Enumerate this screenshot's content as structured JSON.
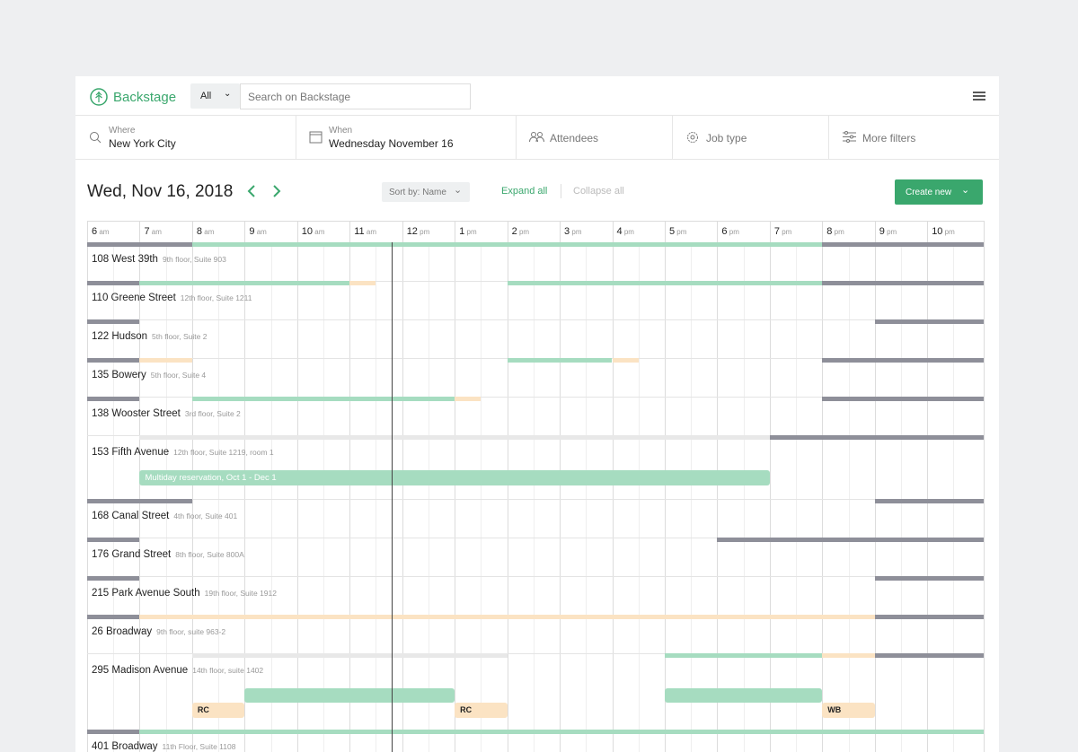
{
  "header": {
    "brand": "Backstage",
    "scope": "All",
    "search_placeholder": "Search on Backstage"
  },
  "filters": [
    {
      "label": "Where",
      "value": "New York City"
    },
    {
      "label": "When",
      "value": "Wednesday November 16"
    },
    {
      "label": "Attendees"
    },
    {
      "label": "Job type"
    },
    {
      "label": "More filters"
    }
  ],
  "toolbar": {
    "date": "Wed, Nov 16, 2018",
    "sort": "Sort by: Name",
    "expand": "Expand all",
    "collapse": "Collapse all",
    "create": "Create new"
  },
  "hours": [
    {
      "hour": "6",
      "period": "am"
    },
    {
      "hour": "7",
      "period": "am"
    },
    {
      "hour": "8",
      "period": "am"
    },
    {
      "hour": "9",
      "period": "am"
    },
    {
      "hour": "10",
      "period": "am"
    },
    {
      "hour": "11",
      "period": "am"
    },
    {
      "hour": "12",
      "period": "pm"
    },
    {
      "hour": "1",
      "period": "pm"
    },
    {
      "hour": "2",
      "period": "pm"
    },
    {
      "hour": "3",
      "period": "pm"
    },
    {
      "hour": "4",
      "period": "pm"
    },
    {
      "hour": "5",
      "period": "pm"
    },
    {
      "hour": "6",
      "period": "pm"
    },
    {
      "hour": "7",
      "period": "pm"
    },
    {
      "hour": "8",
      "period": "pm"
    },
    {
      "hour": "9",
      "period": "pm"
    },
    {
      "hour": "10",
      "period": "pm"
    }
  ],
  "rows": [
    {
      "name": "108 West 39th",
      "detail": "9th floor, Suite 903"
    },
    {
      "name": "110 Greene Street",
      "detail": "12th floor, Suite 1211"
    },
    {
      "name": "122 Hudson",
      "detail": "5th floor, Suite 2"
    },
    {
      "name": "135 Bowery",
      "detail": "5th floor, Suite 4"
    },
    {
      "name": "138 Wooster Street",
      "detail": "3rd floor, Suite 2"
    },
    {
      "name": "153 Fifth Avenue",
      "detail": "12th floor, Suite 1219, room 1",
      "bar": "Multiday reservation, Oct 1 - Dec 1"
    },
    {
      "name": "168 Canal Street",
      "detail": "4th floor, Suite 401"
    },
    {
      "name": "176 Grand Street",
      "detail": "8th floor, Suite 800A"
    },
    {
      "name": "215 Park Avenue South",
      "detail": "19th floor, Suite 1912"
    },
    {
      "name": "26 Broadway",
      "detail": "9th floor, suite 963-2"
    },
    {
      "name": "295 Madison Avenue",
      "detail": "14th floor, suite 1402",
      "tags": [
        "RC",
        "RC",
        "WB"
      ]
    },
    {
      "name": "401 Broadway",
      "detail": "11th Floor, Suite 1108"
    }
  ]
}
